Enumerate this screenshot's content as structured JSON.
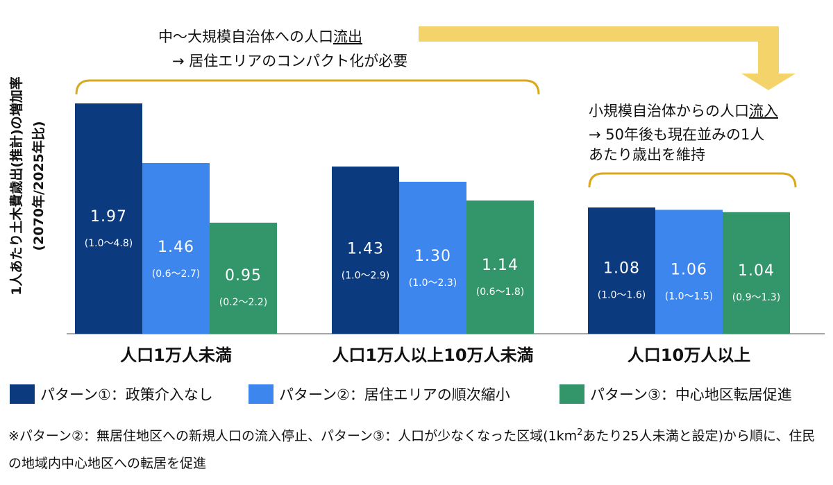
{
  "chart_data": {
    "type": "bar",
    "ylabel_line1": "1人あたり土木費歳出(推計)の増加率",
    "ylabel_line2": "(2070年/2025年比)",
    "categories": [
      "人口1万人未満",
      "人口1万人以上10万人未満",
      "人口10万人以上"
    ],
    "series": [
      {
        "name": "パターン①：政策介入なし",
        "color": "#0b3a7e",
        "values": [
          1.97,
          1.43,
          1.08
        ],
        "value_labels": [
          "1.97",
          "1.43",
          "1.08"
        ],
        "ranges": [
          "(1.0〜4.8)",
          "(1.0〜2.9)",
          "(1.0〜1.6)"
        ]
      },
      {
        "name": "パターン②：居住エリアの順次縮小",
        "color": "#3d86ee",
        "values": [
          1.46,
          1.3,
          1.06
        ],
        "value_labels": [
          "1.46",
          "1.30",
          "1.06"
        ],
        "ranges": [
          "(0.6〜2.7)",
          "(1.0〜2.3)",
          "(1.0〜1.5)"
        ]
      },
      {
        "name": "パターン③：中心地区転居促進",
        "color": "#33966a",
        "values": [
          0.95,
          1.14,
          1.04
        ],
        "value_labels": [
          "0.95",
          "1.14",
          "1.04"
        ],
        "ranges": [
          "(0.2〜2.2)",
          "(0.6〜1.8)",
          "(0.9〜1.3)"
        ]
      }
    ],
    "annotations": {
      "left_line1": "中〜大規模自治体への人口",
      "left_line1_underlined": "流出",
      "left_line2": "→ 居住エリアのコンパクト化が必要",
      "right_line1": "小規模自治体からの人口",
      "right_line1_underlined": "流入",
      "right_line2": "→ 50年後も現在並みの1人",
      "right_line3": "あたり歳出を維持"
    },
    "colors": {
      "bracket": "#d9a81c",
      "arrow": "#f5d36b",
      "axis": "#888888"
    },
    "grid": false,
    "legend_position": "bottom"
  },
  "footnote": {
    "part1": "※パターン②：無居住地区への新規人口の流入停止、パターン③：人口が少なくなった区域(1km",
    "sup": "2",
    "part2": "あたり25人未満と設定)から順に、住民の地域内中心地区への転居を促進"
  }
}
